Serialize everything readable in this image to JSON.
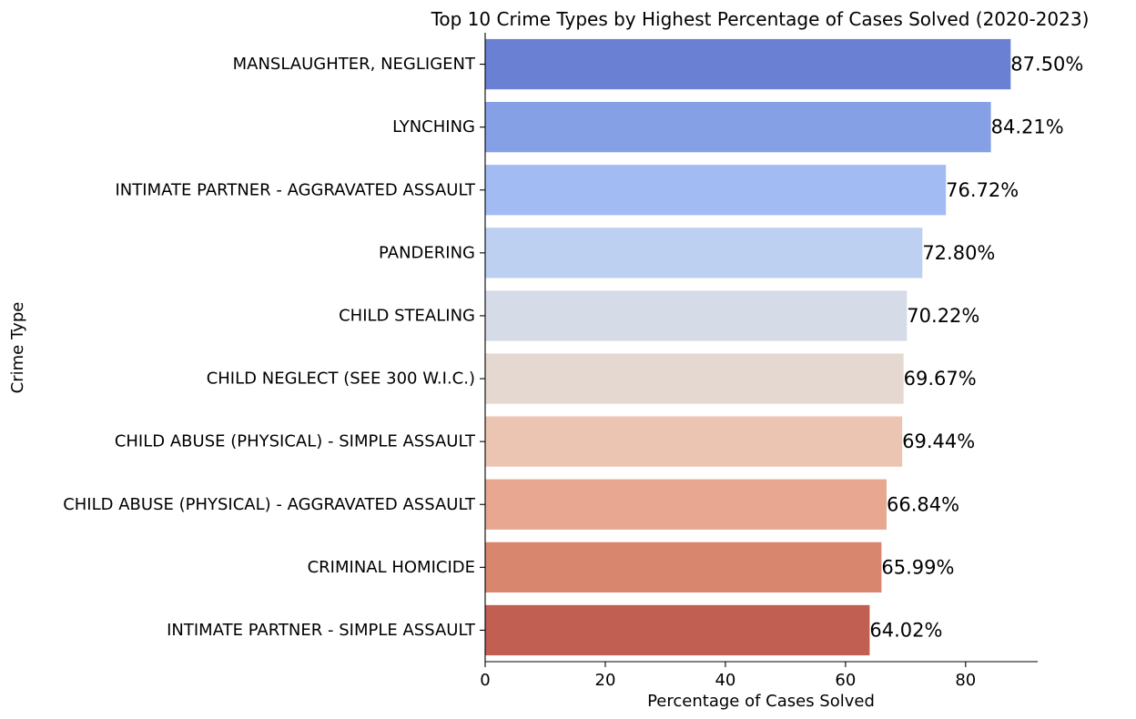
{
  "chart_data": {
    "type": "bar",
    "orientation": "horizontal",
    "title": "Top 10 Crime Types by Highest Percentage of Cases Solved (2020-2023)",
    "xlabel": "Percentage of Cases Solved",
    "ylabel": "Crime Type",
    "xlim": [
      0,
      92
    ],
    "xticks": [
      0,
      20,
      40,
      60,
      80
    ],
    "grid": false,
    "categories": [
      "MANSLAUGHTER, NEGLIGENT",
      "LYNCHING",
      "INTIMATE PARTNER - AGGRAVATED ASSAULT",
      "PANDERING",
      "CHILD STEALING",
      "CHILD NEGLECT (SEE 300 W.I.C.)",
      "CHILD ABUSE (PHYSICAL) - SIMPLE ASSAULT",
      "CHILD ABUSE (PHYSICAL) - AGGRAVATED ASSAULT",
      "CRIMINAL HOMICIDE",
      "INTIMATE PARTNER - SIMPLE ASSAULT"
    ],
    "values": [
      87.5,
      84.21,
      76.72,
      72.8,
      70.22,
      69.67,
      69.44,
      66.84,
      65.99,
      64.02
    ],
    "value_labels": [
      "87.50%",
      "84.21%",
      "76.72%",
      "72.80%",
      "70.22%",
      "69.67%",
      "69.44%",
      "66.84%",
      "65.99%",
      "64.02%"
    ],
    "colors": [
      "#6a80d3",
      "#86a0e5",
      "#a2bcf3",
      "#bdd0f1",
      "#d5dbe7",
      "#e5d8d0",
      "#ecc4b2",
      "#e7a790",
      "#d9866f",
      "#c15f52"
    ]
  }
}
